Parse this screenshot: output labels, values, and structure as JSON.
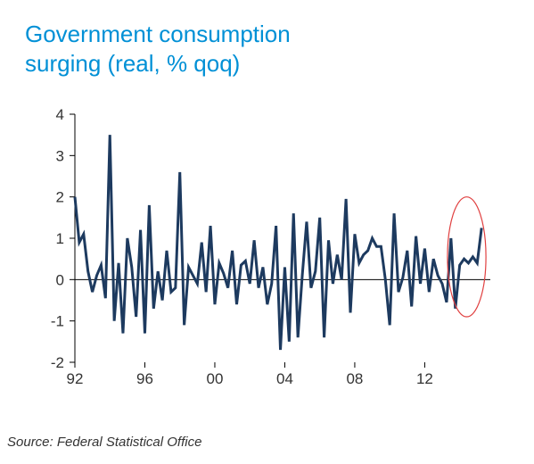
{
  "title_line1": "Government consumption",
  "title_line2": "surging (real, % qoq)",
  "source": "Source: Federal Statistical Office",
  "chart": {
    "type": "line",
    "background_color": "#ffffff",
    "title_color": "#0090d6",
    "title_fontsize": 26,
    "source_color": "#333333",
    "source_fontsize": 15,
    "line_color": "#1d3a5f",
    "line_width": 3,
    "axis_color": "#000000",
    "axis_width": 1,
    "tick_length": 6,
    "tick_label_color": "#333333",
    "tick_fontsize": 17,
    "highlight_ellipse": {
      "stroke": "#e04040",
      "stroke_width": 1.2,
      "fill": "none",
      "cx_year": 2014.4,
      "cy_value": 0.55,
      "rx_years": 1.1,
      "ry_value": 1.45
    },
    "x": {
      "min": 1992,
      "max": 2015.75,
      "ticks": [
        1992,
        1996,
        2000,
        2004,
        2008,
        2012
      ],
      "tick_labels": [
        "92",
        "96",
        "00",
        "04",
        "08",
        "12"
      ]
    },
    "y": {
      "min": -2,
      "max": 4,
      "ticks": [
        -2,
        -1,
        0,
        1,
        2,
        3,
        4
      ],
      "tick_labels": [
        "-2",
        "-1",
        "0",
        "1",
        "2",
        "3",
        "4"
      ]
    },
    "series": {
      "years": [
        1992.0,
        1992.25,
        1992.5,
        1992.75,
        1993.0,
        1993.25,
        1993.5,
        1993.75,
        1994.0,
        1994.25,
        1994.5,
        1994.75,
        1995.0,
        1995.25,
        1995.5,
        1995.75,
        1996.0,
        1996.25,
        1996.5,
        1996.75,
        1997.0,
        1997.25,
        1997.5,
        1997.75,
        1998.0,
        1998.25,
        1998.5,
        1998.75,
        1999.0,
        1999.25,
        1999.5,
        1999.75,
        2000.0,
        2000.25,
        2000.5,
        2000.75,
        2001.0,
        2001.25,
        2001.5,
        2001.75,
        2002.0,
        2002.25,
        2002.5,
        2002.75,
        2003.0,
        2003.25,
        2003.5,
        2003.75,
        2004.0,
        2004.25,
        2004.5,
        2004.75,
        2005.0,
        2005.25,
        2005.5,
        2005.75,
        2006.0,
        2006.25,
        2006.5,
        2006.75,
        2007.0,
        2007.25,
        2007.5,
        2007.75,
        2008.0,
        2008.25,
        2008.5,
        2008.75,
        2009.0,
        2009.25,
        2009.5,
        2009.75,
        2010.0,
        2010.25,
        2010.5,
        2010.75,
        2011.0,
        2011.25,
        2011.5,
        2011.75,
        2012.0,
        2012.25,
        2012.5,
        2012.75,
        2013.0,
        2013.25,
        2013.5,
        2013.75,
        2014.0,
        2014.25,
        2014.5,
        2014.75,
        2015.0,
        2015.25
      ],
      "values": [
        2.0,
        0.9,
        1.1,
        0.2,
        -0.3,
        0.1,
        0.35,
        -0.45,
        3.5,
        -1.0,
        0.4,
        -1.3,
        1.0,
        0.3,
        -0.9,
        1.2,
        -1.3,
        1.8,
        -0.7,
        0.2,
        -0.5,
        0.7,
        -0.3,
        -0.2,
        2.6,
        -1.1,
        0.3,
        0.1,
        -0.1,
        0.9,
        -0.3,
        1.3,
        -0.6,
        0.4,
        0.15,
        -0.2,
        0.7,
        -0.6,
        0.35,
        0.45,
        -0.1,
        0.95,
        -0.2,
        0.3,
        -0.6,
        -0.1,
        1.3,
        -1.7,
        0.3,
        -1.5,
        1.6,
        -1.4,
        0.1,
        1.4,
        -0.2,
        0.2,
        1.5,
        -1.4,
        0.95,
        -0.1,
        0.6,
        0.0,
        1.95,
        -0.8,
        1.1,
        0.4,
        0.6,
        0.7,
        1.0,
        0.8,
        0.8,
        0.0,
        -1.1,
        1.6,
        -0.3,
        0.05,
        0.7,
        -0.65,
        1.05,
        -0.1,
        0.75,
        -0.3,
        0.5,
        0.1,
        -0.1,
        -0.55,
        1.0,
        -0.7,
        0.35,
        0.5,
        0.4,
        0.55,
        0.4,
        1.25
      ]
    }
  }
}
